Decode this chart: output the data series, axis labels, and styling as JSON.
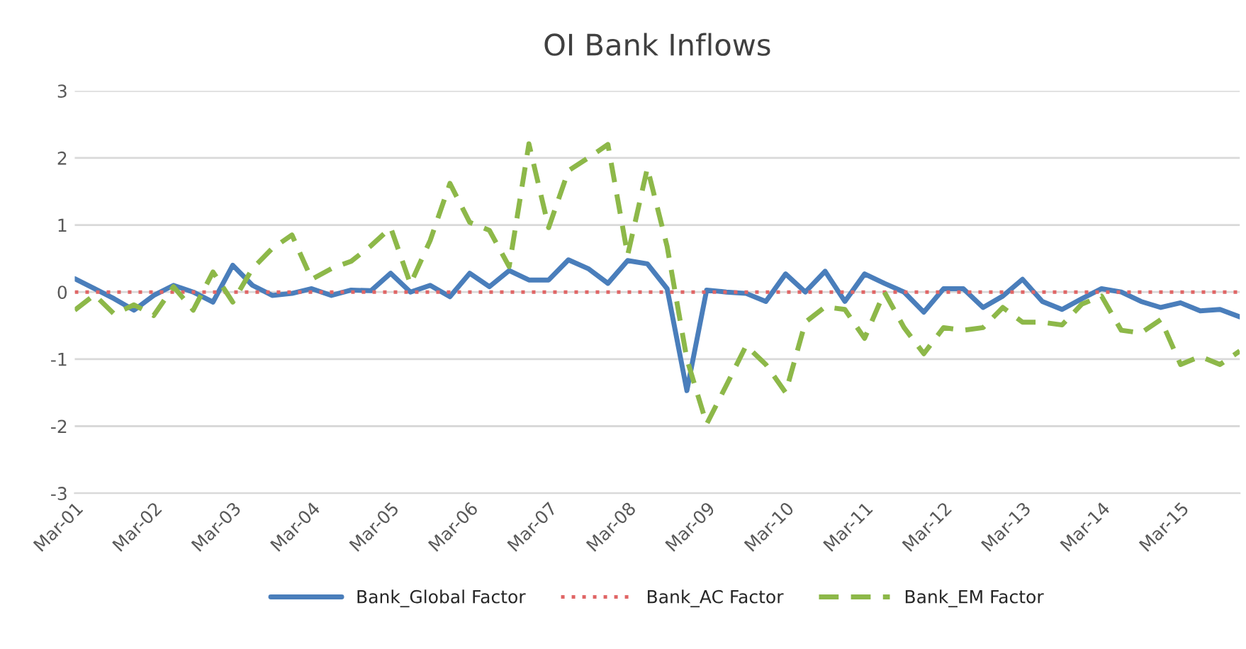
{
  "chart_data": {
    "type": "line",
    "title": "OI Bank Inflows",
    "categories": [
      "Mar-01",
      null,
      null,
      null,
      "Mar-02",
      null,
      null,
      null,
      "Mar-03",
      null,
      null,
      null,
      "Mar-04",
      null,
      null,
      null,
      "Mar-05",
      null,
      null,
      null,
      "Mar-06",
      null,
      null,
      null,
      "Mar-07",
      null,
      null,
      null,
      "Mar-08",
      null,
      null,
      null,
      "Mar-09",
      null,
      null,
      null,
      "Mar-10",
      null,
      null,
      null,
      "Mar-11",
      null,
      null,
      null,
      "Mar-12",
      null,
      null,
      null,
      "Mar-13",
      null,
      null,
      null,
      "Mar-14",
      null,
      null,
      null,
      "Mar-15",
      null,
      null,
      null
    ],
    "series": [
      {
        "name": "Bank_Global Factor",
        "color": "#4a7ebb",
        "line_style": "solid",
        "values": [
          0.2,
          0.05,
          -0.1,
          -0.27,
          -0.05,
          0.1,
          0.0,
          -0.15,
          0.4,
          0.1,
          -0.05,
          -0.02,
          0.05,
          -0.05,
          0.03,
          0.02,
          0.28,
          0.0,
          0.1,
          -0.07,
          0.28,
          0.08,
          0.32,
          0.18,
          0.18,
          0.48,
          0.35,
          0.13,
          0.47,
          0.42,
          0.05,
          -1.47,
          0.03,
          0.0,
          -0.02,
          -0.14,
          0.27,
          0.0,
          0.31,
          -0.14,
          0.27,
          0.13,
          0.0,
          -0.3,
          0.05,
          0.05,
          -0.23,
          -0.06,
          0.19,
          -0.14,
          -0.26,
          -0.1,
          0.05,
          0.0,
          -0.14,
          -0.23,
          -0.16,
          -0.28,
          -0.26,
          -0.37
        ]
      },
      {
        "name": "Bank_AC Factor",
        "color": "#e06666",
        "line_style": "dotted",
        "values": [
          0,
          0,
          0,
          0,
          0,
          0,
          0,
          0,
          0,
          0,
          0,
          0,
          0,
          0,
          0,
          0,
          0,
          0,
          0,
          0,
          0,
          0,
          0,
          0,
          0,
          0,
          0,
          0,
          0,
          0,
          0,
          0,
          0,
          0,
          0,
          0,
          0,
          0,
          0,
          0,
          0,
          0,
          0,
          0,
          0,
          0,
          0,
          0,
          0,
          0,
          0,
          0,
          0,
          0,
          0,
          0,
          0,
          0,
          0,
          0
        ]
      },
      {
        "name": "Bank_EM Factor",
        "color": "#8db849",
        "line_style": "dashed",
        "values": [
          -0.27,
          -0.04,
          -0.33,
          -0.19,
          -0.35,
          0.08,
          -0.27,
          0.3,
          -0.15,
          0.35,
          0.65,
          0.85,
          0.19,
          0.35,
          0.46,
          0.69,
          0.96,
          0.12,
          0.77,
          1.62,
          1.04,
          0.92,
          0.38,
          2.21,
          0.96,
          1.81,
          2.0,
          2.2,
          0.55,
          1.85,
          0.68,
          -1.0,
          -1.97,
          -1.39,
          -0.8,
          -1.08,
          -1.5,
          -0.45,
          -0.22,
          -0.26,
          -0.69,
          0.0,
          -0.53,
          -0.92,
          -0.53,
          -0.57,
          -0.53,
          -0.23,
          -0.45,
          -0.45,
          -0.49,
          -0.18,
          -0.06,
          -0.57,
          -0.61,
          -0.41,
          -1.08,
          -0.96,
          -1.08,
          -0.88
        ]
      }
    ],
    "ylim": [
      -3,
      3
    ],
    "yticks": [
      -3,
      -2,
      -1,
      0,
      1,
      2,
      3
    ],
    "grid": "y",
    "legend": "bottom",
    "marker": "none"
  }
}
